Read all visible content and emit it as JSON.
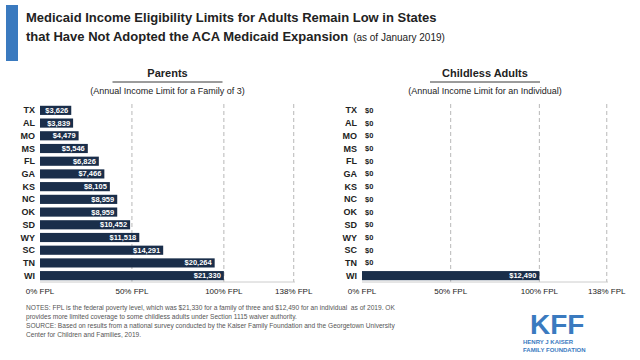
{
  "title": [
    "Medicaid Income Eligibility Limits for Adults Remain Low in States",
    "that Have Not Adopted the ACA Medicaid Expansion"
  ],
  "subtitle": "(as of January 2019)",
  "annotations": [
    "NOTES: FPL is the federal poverty level, which was $21,330 for a family of three and $12,490 for an individual  as of 2019. OK",
    "provides more limited coverage to some childless adults under Section 1115 waiver authority.",
    "SOURCE: Based on results from a national survey conducted by the Kaiser Family Foundation and the Georgetown University",
    "Center for Children and Families, 2019.",
    "KFF",
    "HENRY J KAISER",
    "FAMILY FOUNDATION"
  ],
  "chart_data": [
    {
      "type": "bar",
      "orientation": "horizontal",
      "title": "Parents",
      "subtitle": "(Annual Income Limit for a Family of 3)",
      "categories": [
        "WI",
        "TN",
        "SC",
        "WY",
        "SD",
        "OK",
        "NC",
        "KS",
        "GA",
        "FL",
        "MS",
        "MO",
        "AL",
        "TX"
      ],
      "values": [
        21330,
        20264,
        14291,
        11518,
        10452,
        8959,
        8959,
        8105,
        7466,
        6826,
        5546,
        4479,
        3839,
        3626
      ],
      "value_labels": [
        "$21,330",
        "$20,264",
        "$14,291",
        "$11,518",
        "$10,452",
        "$8,959",
        "$8,959",
        "$8,105",
        "$7,466",
        "$6,826",
        "$5,546",
        "$4,479",
        "$3,839",
        "$3,626"
      ],
      "data_labels": true,
      "color": "#1a2e4a",
      "xlim": [
        0,
        29582.577
      ],
      "xticks": [
        {
          "value": 0,
          "label": "0% FPL"
        },
        {
          "value": 10665,
          "label": "50% FPL"
        },
        {
          "value": 21330,
          "label": "100% FPL"
        },
        {
          "value": 29435,
          "label": "138% FPL"
        }
      ],
      "grid": true
    },
    {
      "type": "bar",
      "orientation": "horizontal",
      "title": "Childless Adults",
      "subtitle": "(Annual Income Limit for an Individual)",
      "categories": [
        "WI",
        "TN",
        "SC",
        "WY",
        "SD",
        "OK",
        "NC",
        "KS",
        "GA",
        "FL",
        "MS",
        "MO",
        "AL",
        "TX"
      ],
      "values": [
        12490,
        0,
        0,
        0,
        0,
        0,
        0,
        0,
        0,
        0,
        0,
        0,
        0,
        0
      ],
      "value_labels": [
        "$12,490",
        "$0",
        "$0",
        "$0",
        "$0",
        "$0",
        "$0",
        "$0",
        "$0",
        "$0",
        "$0",
        "$0",
        "$0",
        "$0"
      ],
      "data_labels": true,
      "color": "#1a2e4a",
      "xlim": [
        0,
        17322.381
      ],
      "xticks": [
        {
          "value": 0,
          "label": "0% FPL"
        },
        {
          "value": 6245,
          "label": "50% FPL"
        },
        {
          "value": 12490,
          "label": "100% FPL"
        },
        {
          "value": 17235,
          "label": "138% FPL"
        }
      ],
      "grid": true
    }
  ]
}
